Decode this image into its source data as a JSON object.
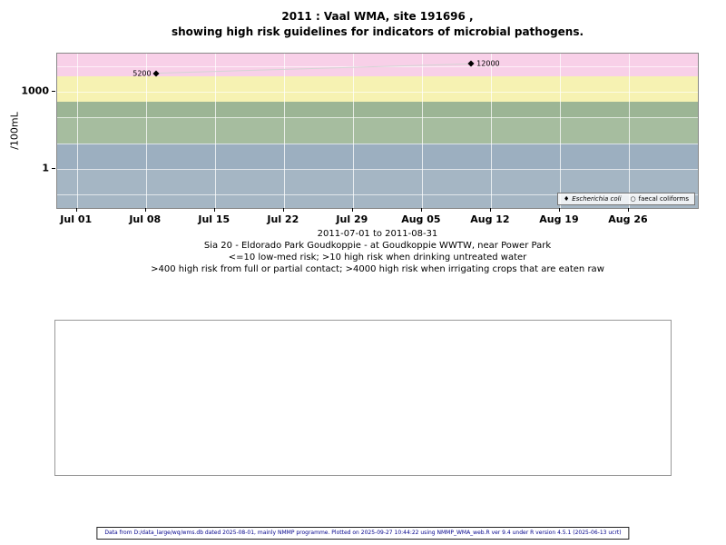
{
  "icons": {
    "filled_diamond": "♦",
    "open_circle": "○"
  },
  "footer": {
    "text": "Data from D:/data_large/wq/wms.db dated 2025-08-01, mainly NMMP programme. Plotted on 2025-09-27 10:44:22 using NMMP_WMA_web.R ver 9.4 under R version 4.5.1 (2025-06-13 ucrt)"
  },
  "chart_data": {
    "type": "scatter",
    "title_line1": "2011 : Vaal WMA, site 191696 ,",
    "title_line2": "showing high risk guidelines for indicators of microbial pathogens.",
    "ylabel": "/100mL",
    "y_scale": "log10",
    "y_domain": [
      0.03,
      30000
    ],
    "y_ticks": [
      {
        "value": 1000,
        "label": "1000"
      },
      {
        "value": 1,
        "label": "1"
      }
    ],
    "y_gridlines": [
      10000,
      1000,
      100,
      10,
      1,
      0.1
    ],
    "x_unit": "days since 2011-07-01",
    "x_domain_days": [
      -2,
      63
    ],
    "x_ticks": [
      {
        "day": 0,
        "label": "Jul 01"
      },
      {
        "day": 7,
        "label": "Jul 08"
      },
      {
        "day": 14,
        "label": "Jul 15"
      },
      {
        "day": 21,
        "label": "Jul 22"
      },
      {
        "day": 28,
        "label": "Jul 29"
      },
      {
        "day": 35,
        "label": "Aug 05"
      },
      {
        "day": 42,
        "label": "Aug 12"
      },
      {
        "day": 49,
        "label": "Aug 19"
      },
      {
        "day": 56,
        "label": "Aug 26"
      }
    ],
    "bands": [
      {
        "from": 4000,
        "to": 30000,
        "color": "#f8d0e8"
      },
      {
        "from": 400,
        "to": 4000,
        "color": "#f6f2b2"
      },
      {
        "from": 100,
        "to": 400,
        "color": "#9cb595"
      },
      {
        "from": 10,
        "to": 100,
        "color": "#a6bd9f"
      },
      {
        "from": 1,
        "to": 10,
        "color": "#9cafc0"
      },
      {
        "from": 0.03,
        "to": 1,
        "color": "#a5b6c4"
      }
    ],
    "series": [
      {
        "name": "Escherichia coli",
        "marker": "filled-diamond",
        "line_color": "#d4d4d4",
        "points": [
          {
            "day": 8,
            "value": 5200,
            "label": "5200",
            "label_side": "left"
          },
          {
            "day": 40,
            "value": 12000,
            "label": "12000",
            "label_side": "right"
          }
        ]
      },
      {
        "name": "faecal coliforms",
        "marker": "open-circle",
        "points": []
      }
    ],
    "caption_lines": [
      "2011-07-01 to 2011-08-31",
      "Sia 20 - Eldorado Park Goudkoppie - at Goudkoppie WWTW, near Power Park",
      "<=10 low-med risk; >10 high risk when drinking untreated water",
      ">400 high risk from full or partial contact; >4000 high risk when irrigating crops that are eaten raw"
    ]
  }
}
